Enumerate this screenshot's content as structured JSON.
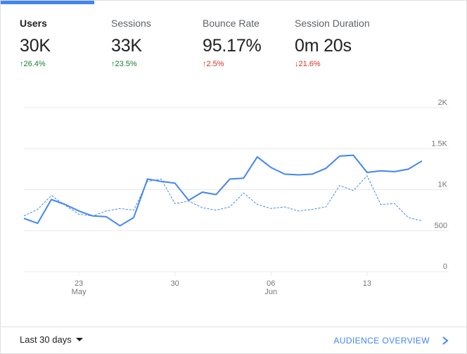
{
  "tabs": [
    {
      "label": "Users",
      "value": "30K",
      "delta": "26.4%",
      "direction": "up",
      "sentiment": "good"
    },
    {
      "label": "Sessions",
      "value": "33K",
      "delta": "23.5%",
      "direction": "up",
      "sentiment": "good"
    },
    {
      "label": "Bounce Rate",
      "value": "95.17%",
      "delta": "2.5%",
      "direction": "up",
      "sentiment": "bad"
    },
    {
      "label": "Session Duration",
      "value": "0m 20s",
      "delta": "21.6%",
      "direction": "down",
      "sentiment": "bad"
    }
  ],
  "arrows": {
    "up": "↑",
    "down": "↓"
  },
  "colors": {
    "accent": "#4285f4",
    "positive": "#188038",
    "negative": "#d93025",
    "grid": "#e8e8e8"
  },
  "chart_data": {
    "type": "line",
    "y_tick_labels": [
      "2K",
      "1.5K",
      "1K",
      "500",
      "0"
    ],
    "y_ticks": [
      2000,
      1500,
      1000,
      500,
      0
    ],
    "ylim": [
      0,
      2000
    ],
    "grid": true,
    "x_tick_labels": [
      {
        "day": "23",
        "month": "May",
        "index": 4
      },
      {
        "day": "30",
        "month": "",
        "index": 11
      },
      {
        "day": "06",
        "month": "Jun",
        "index": 18
      },
      {
        "day": "13",
        "month": "",
        "index": 25
      }
    ],
    "series": [
      {
        "style": "solid",
        "values": [
          650,
          590,
          880,
          820,
          740,
          680,
          670,
          560,
          660,
          1130,
          1100,
          1080,
          870,
          970,
          940,
          1130,
          1140,
          1400,
          1270,
          1190,
          1180,
          1190,
          1260,
          1410,
          1420,
          1210,
          1230,
          1220,
          1250,
          1350
        ]
      },
      {
        "style": "dashed",
        "values": [
          680,
          760,
          930,
          810,
          700,
          680,
          740,
          770,
          750,
          1100,
          1130,
          830,
          860,
          780,
          750,
          790,
          960,
          820,
          770,
          790,
          740,
          760,
          790,
          1050,
          990,
          1170,
          820,
          830,
          660,
          620
        ]
      }
    ]
  },
  "footer": {
    "range_label": "Last 30 days",
    "overview_label": "AUDIENCE OVERVIEW"
  }
}
